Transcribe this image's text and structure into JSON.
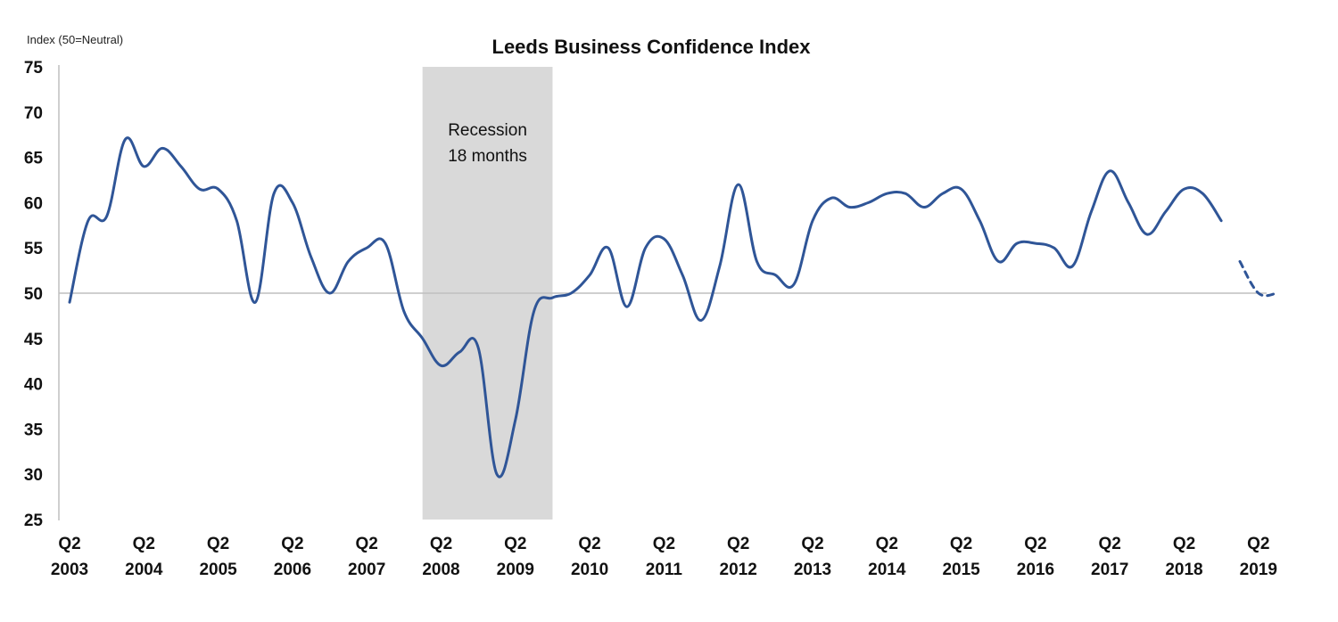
{
  "chart_data": {
    "type": "line",
    "title": "Leeds Business Confidence Index",
    "ylabel": "Index (50=Neutral)",
    "xlabel": "",
    "ylim": [
      25,
      75
    ],
    "yticks": [
      "75",
      "70",
      "65",
      "60",
      "55",
      "50",
      "45",
      "40",
      "35",
      "30",
      "25"
    ],
    "grid": false,
    "reference_line": 50,
    "xtick_labels": [
      [
        "Q2",
        "2003"
      ],
      [
        "Q2",
        "2004"
      ],
      [
        "Q2",
        "2005"
      ],
      [
        "Q2",
        "2006"
      ],
      [
        "Q2",
        "2007"
      ],
      [
        "Q2",
        "2008"
      ],
      [
        "Q2",
        "2009"
      ],
      [
        "Q2",
        "2010"
      ],
      [
        "Q2",
        "2011"
      ],
      [
        "Q2",
        "2012"
      ],
      [
        "Q2",
        "2013"
      ],
      [
        "Q2",
        "2014"
      ],
      [
        "Q2",
        "2015"
      ],
      [
        "Q2",
        "2016"
      ],
      [
        "Q2",
        "2017"
      ],
      [
        "Q2",
        "2018"
      ],
      [
        "Q2",
        "2019"
      ]
    ],
    "shaded_region": {
      "x": [
        2007.75,
        2009.5
      ],
      "label": [
        "Recession",
        "18 months"
      ]
    },
    "series": [
      {
        "color": "#2f5597",
        "x": [
          2003.0,
          2003.25,
          2003.5,
          2003.75,
          2004.0,
          2004.25,
          2004.5,
          2004.75,
          2005.0,
          2005.25,
          2005.5,
          2005.75,
          2006.0,
          2006.25,
          2006.5,
          2006.75,
          2007.0,
          2007.25,
          2007.5,
          2007.75,
          2008.0,
          2008.25,
          2008.5,
          2008.75,
          2009.0,
          2009.25,
          2009.5,
          2009.75,
          2010.0,
          2010.25,
          2010.5,
          2010.75,
          2011.0,
          2011.25,
          2011.5,
          2011.75,
          2012.0,
          2012.25,
          2012.5,
          2012.75,
          2013.0,
          2013.25,
          2013.5,
          2013.75,
          2014.0,
          2014.25,
          2014.5,
          2014.75,
          2015.0,
          2015.25,
          2015.5,
          2015.75,
          2016.0,
          2016.25,
          2016.5,
          2016.75,
          2017.0,
          2017.25,
          2017.5,
          2017.75,
          2018.0,
          2018.25,
          2018.5
        ],
        "y": [
          49,
          58,
          58.5,
          67,
          64,
          66,
          64,
          61.5,
          61.5,
          58,
          49,
          61,
          60,
          54,
          50,
          53.5,
          55,
          55.5,
          48,
          45,
          42,
          43.5,
          44,
          30,
          36,
          48,
          49.5,
          50,
          52,
          55,
          48.5,
          55,
          56,
          52,
          47,
          53,
          62,
          53.5,
          52,
          51,
          58,
          60.5,
          59.5,
          60,
          61,
          61,
          59.5,
          61,
          61.5,
          58,
          53.5,
          55.5,
          55.5,
          55,
          53,
          59,
          63.5,
          60,
          56.5,
          59,
          61.5,
          61,
          58
        ]
      },
      {
        "color": "#2f5597",
        "dashed": true,
        "x": [
          2018.75,
          2019.0,
          2019.25
        ],
        "y": [
          53.5,
          50,
          50
        ]
      }
    ]
  }
}
